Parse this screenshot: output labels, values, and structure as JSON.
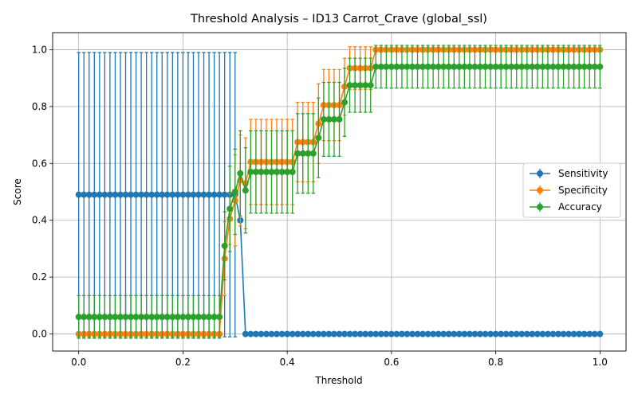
{
  "chart_data": {
    "type": "line",
    "title": "Threshold Analysis – ID13 Carrot_Crave (global_ssl)",
    "xlabel": "Threshold",
    "ylabel": "Score",
    "xlim": [
      -0.05,
      1.05
    ],
    "ylim": [
      -0.06,
      1.06
    ],
    "xticks": [
      0.0,
      0.2,
      0.4,
      0.6,
      0.8,
      1.0
    ],
    "xtick_labels": [
      "0.0",
      "0.2",
      "0.4",
      "0.6",
      "0.8",
      "1.0"
    ],
    "yticks": [
      0.0,
      0.2,
      0.4,
      0.6,
      0.8,
      1.0
    ],
    "ytick_labels": [
      "0.0",
      "0.2",
      "0.4",
      "0.6",
      "0.8",
      "1.0"
    ],
    "grid": true,
    "legend_position": "center-right",
    "x": {
      "start": 0.0,
      "stop": 1.0,
      "count": 101
    },
    "series": [
      {
        "name": "Sensitivity",
        "color": "#1f77b4",
        "marker": "circle",
        "segments": [
          {
            "from": 0.0,
            "to": 0.3,
            "mean": 0.49,
            "err": 0.5
          },
          {
            "from": 0.31,
            "to": 0.31,
            "mean": 0.4,
            "err": 0.0
          },
          {
            "from": 0.32,
            "to": 1.0,
            "mean": 0.0,
            "err": 0.0
          }
        ]
      },
      {
        "name": "Specificity",
        "color": "#ff7f0e",
        "marker": "circle",
        "segments": [
          {
            "from": 0.0,
            "to": 0.27,
            "mean": 0.0,
            "err": 0.0
          },
          {
            "from": 0.28,
            "to": 0.28,
            "mean": 0.265,
            "err": 0.13
          },
          {
            "from": 0.29,
            "to": 0.29,
            "mean": 0.405,
            "err": 0.09
          },
          {
            "from": 0.3,
            "to": 0.3,
            "mean": 0.47,
            "err": 0.16
          },
          {
            "from": 0.31,
            "to": 0.31,
            "mean": 0.54,
            "err": 0.16
          },
          {
            "from": 0.32,
            "to": 0.32,
            "mean": 0.53,
            "err": 0.16
          },
          {
            "from": 0.33,
            "to": 0.41,
            "mean": 0.605,
            "err": 0.15
          },
          {
            "from": 0.42,
            "to": 0.45,
            "mean": 0.675,
            "err": 0.14
          },
          {
            "from": 0.46,
            "to": 0.46,
            "mean": 0.74,
            "err": 0.14
          },
          {
            "from": 0.47,
            "to": 0.5,
            "mean": 0.805,
            "err": 0.125
          },
          {
            "from": 0.51,
            "to": 0.51,
            "mean": 0.87,
            "err": 0.1
          },
          {
            "from": 0.52,
            "to": 0.56,
            "mean": 0.935,
            "err": 0.075
          },
          {
            "from": 0.57,
            "to": 1.0,
            "mean": 1.0,
            "err": 0.0
          }
        ]
      },
      {
        "name": "Accuracy",
        "color": "#2ca02c",
        "marker": "circle",
        "segments": [
          {
            "from": 0.0,
            "to": 0.27,
            "mean": 0.06,
            "err": 0.075
          },
          {
            "from": 0.28,
            "to": 0.28,
            "mean": 0.31,
            "err": 0.12
          },
          {
            "from": 0.29,
            "to": 0.29,
            "mean": 0.44,
            "err": 0.15
          },
          {
            "from": 0.3,
            "to": 0.3,
            "mean": 0.5,
            "err": 0.15
          },
          {
            "from": 0.31,
            "to": 0.31,
            "mean": 0.565,
            "err": 0.15
          },
          {
            "from": 0.32,
            "to": 0.32,
            "mean": 0.505,
            "err": 0.15
          },
          {
            "from": 0.33,
            "to": 0.41,
            "mean": 0.57,
            "err": 0.145
          },
          {
            "from": 0.42,
            "to": 0.45,
            "mean": 0.635,
            "err": 0.14
          },
          {
            "from": 0.46,
            "to": 0.46,
            "mean": 0.69,
            "err": 0.14
          },
          {
            "from": 0.47,
            "to": 0.5,
            "mean": 0.755,
            "err": 0.13
          },
          {
            "from": 0.51,
            "to": 0.51,
            "mean": 0.815,
            "err": 0.12
          },
          {
            "from": 0.52,
            "to": 0.56,
            "mean": 0.875,
            "err": 0.095
          },
          {
            "from": 0.57,
            "to": 1.0,
            "mean": 0.94,
            "err": 0.075
          }
        ]
      }
    ]
  }
}
